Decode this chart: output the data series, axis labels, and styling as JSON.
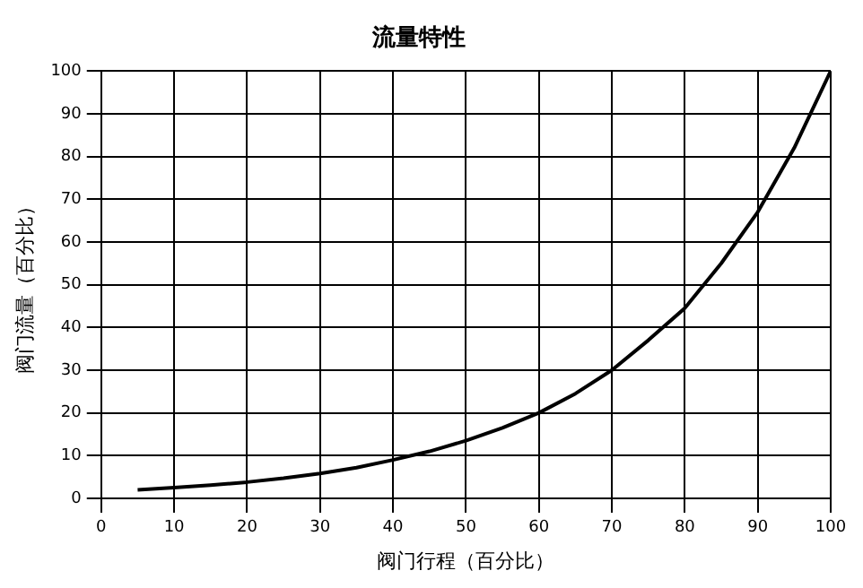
{
  "chart_data": {
    "type": "line",
    "title": "流量特性",
    "xlabel": "阀门行程（百分比）",
    "ylabel": "阀门流量（百分比）",
    "x": [
      5,
      10,
      15,
      20,
      25,
      30,
      35,
      40,
      45,
      50,
      55,
      60,
      65,
      70,
      75,
      80,
      85,
      90,
      95,
      100
    ],
    "series": [
      {
        "color": "#000000",
        "values": [
          2,
          2.5,
          3.1,
          3.8,
          4.7,
          5.8,
          7.2,
          9,
          11,
          13.5,
          16.5,
          20,
          24.5,
          30,
          37,
          44.5,
          55,
          67,
          82,
          100
        ]
      }
    ],
    "xlim": [
      0,
      100
    ],
    "xticks": [
      0,
      10,
      20,
      30,
      40,
      50,
      60,
      70,
      80,
      90,
      100
    ],
    "ylim": [
      0,
      100
    ],
    "yticks": [
      0,
      10,
      20,
      30,
      40,
      50,
      60,
      70,
      80,
      90,
      100
    ],
    "grid": true,
    "legend": false,
    "marker": "none",
    "line_style": "solid"
  }
}
